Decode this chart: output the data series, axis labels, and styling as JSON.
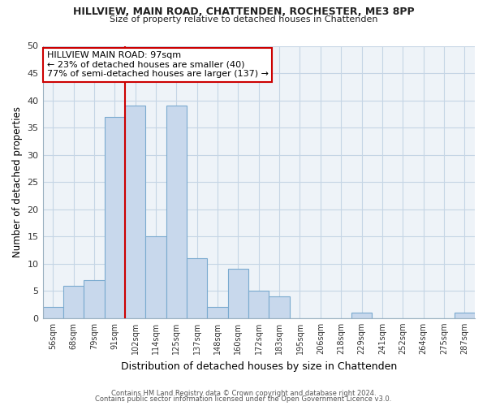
{
  "title1": "HILLVIEW, MAIN ROAD, CHATTENDEN, ROCHESTER, ME3 8PP",
  "title2": "Size of property relative to detached houses in Chattenden",
  "xlabel": "Distribution of detached houses by size in Chattenden",
  "ylabel": "Number of detached properties",
  "bar_labels": [
    "56sqm",
    "68sqm",
    "79sqm",
    "91sqm",
    "102sqm",
    "114sqm",
    "125sqm",
    "137sqm",
    "148sqm",
    "160sqm",
    "172sqm",
    "183sqm",
    "195sqm",
    "206sqm",
    "218sqm",
    "229sqm",
    "241sqm",
    "252sqm",
    "264sqm",
    "275sqm",
    "287sqm"
  ],
  "bar_values": [
    2,
    6,
    7,
    37,
    39,
    15,
    39,
    11,
    2,
    9,
    5,
    4,
    0,
    0,
    0,
    1,
    0,
    0,
    0,
    0,
    1
  ],
  "bar_color": "#c8d8ec",
  "bar_edge_color": "#7aaacf",
  "vline_x_idx": 3.5,
  "vline_color": "#cc0000",
  "annotation_title": "HILLVIEW MAIN ROAD: 97sqm",
  "annotation_line1": "← 23% of detached houses are smaller (40)",
  "annotation_line2": "77% of semi-detached houses are larger (137) →",
  "annotation_box_color": "#ffffff",
  "annotation_box_edge": "#cc0000",
  "ylim": [
    0,
    50
  ],
  "yticks": [
    0,
    5,
    10,
    15,
    20,
    25,
    30,
    35,
    40,
    45,
    50
  ],
  "footnote1": "Contains HM Land Registry data © Crown copyright and database right 2024.",
  "footnote2": "Contains public sector information licensed under the Open Government Licence v3.0.",
  "bg_color": "#ffffff",
  "plot_bg_color": "#eef3f8",
  "grid_color": "#c5d5e5"
}
